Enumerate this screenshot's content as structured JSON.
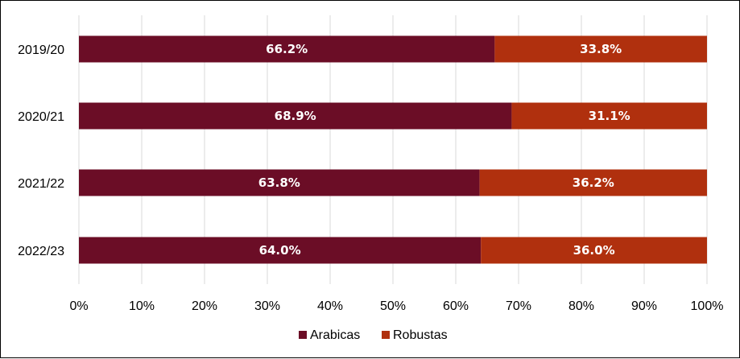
{
  "chart_data": {
    "type": "bar",
    "orientation": "horizontal",
    "stacked": true,
    "title": "",
    "xlabel": "",
    "ylabel": "",
    "categories": [
      "2019/20",
      "2020/21",
      "2021/22",
      "2022/23"
    ],
    "series": [
      {
        "name": "Arabicas",
        "color": "#6b0d26",
        "values": [
          66.2,
          68.9,
          63.8,
          64.0
        ],
        "labels": [
          "66.2%",
          "68.9%",
          "63.8%",
          "64.0%"
        ]
      },
      {
        "name": "Robustas",
        "color": "#b0300e",
        "values": [
          33.8,
          31.1,
          36.2,
          36.0
        ],
        "labels": [
          "33.8%",
          "31.1%",
          "36.2%",
          "36.0%"
        ]
      }
    ],
    "xlim": [
      0,
      100
    ],
    "x_ticks": [
      "0%",
      "10%",
      "20%",
      "30%",
      "40%",
      "50%",
      "60%",
      "70%",
      "80%",
      "90%",
      "100%"
    ],
    "grid": true,
    "legend_position": "bottom"
  }
}
